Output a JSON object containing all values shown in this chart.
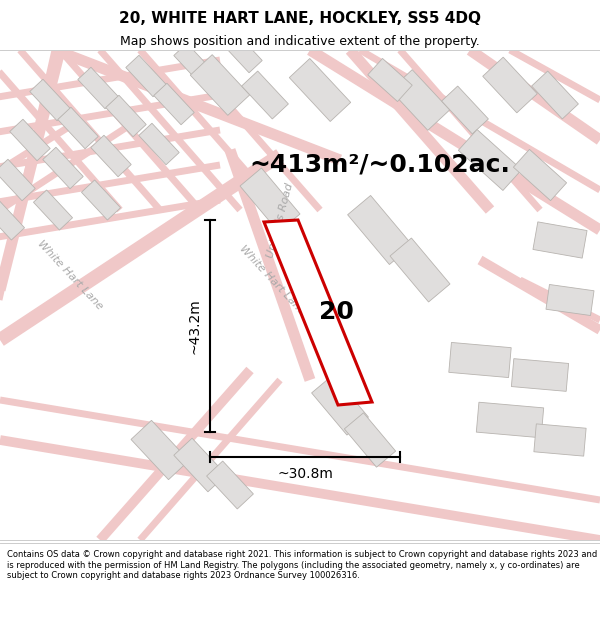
{
  "title_line1": "20, WHITE HART LANE, HOCKLEY, SS5 4DQ",
  "title_line2": "Map shows position and indicative extent of the property.",
  "area_text": "~413m²/~0.102ac.",
  "property_number": "20",
  "dim_height": "~43.2m",
  "dim_width": "~30.8m",
  "footer_text": "Contains OS data © Crown copyright and database right 2021. This information is subject to Crown copyright and database rights 2023 and is reproduced with the permission of HM Land Registry. The polygons (including the associated geometry, namely x, y co-ordinates) are subject to Crown copyright and database rights 2023 Ordnance Survey 100026316.",
  "map_bg": "#f2f0ed",
  "road_color": "#f0c8c8",
  "road_edge": "#e0a0a0",
  "building_color": "#e0dedd",
  "building_edge": "#b8b4b0",
  "property_fill": "white",
  "property_edge": "#cc0000",
  "dim_line_color": "black",
  "road_label_color": "#aaaaaa",
  "title_fontsize": 11,
  "subtitle_fontsize": 9,
  "area_fontsize": 18,
  "dim_fontsize": 10,
  "number_fontsize": 18,
  "road_label_fontsize": 8,
  "footer_fontsize": 6
}
